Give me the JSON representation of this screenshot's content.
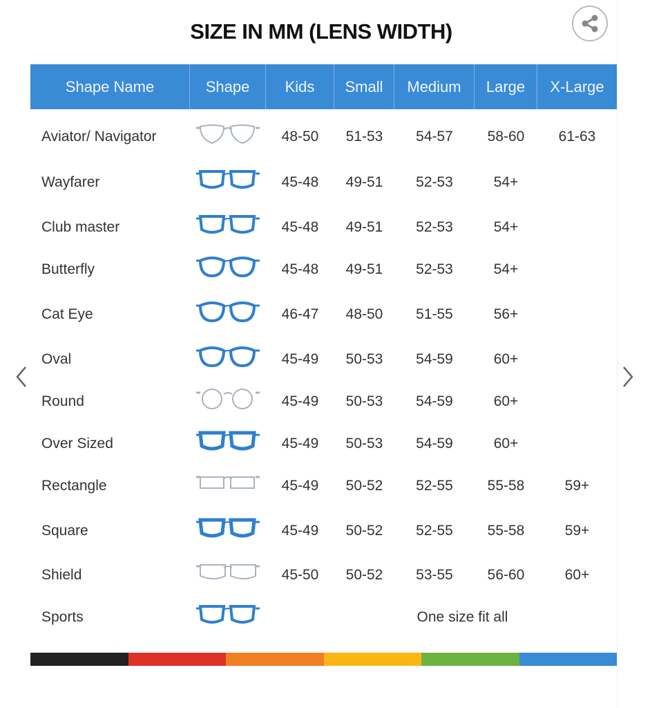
{
  "title": "SIZE IN MM (LENS WIDTH)",
  "share_icon": "share-icon",
  "columns": [
    "Shape Name",
    "Shape",
    "Kids",
    "Small",
    "Medium",
    "Large",
    "X-Large"
  ],
  "rows": [
    {
      "name": "Aviator/ Navigator",
      "shape": "aviator",
      "sizes": [
        "48-50",
        "51-53",
        "54-57",
        "58-60",
        "61-63"
      ]
    },
    {
      "name": "Wayfarer",
      "shape": "wayfarer",
      "sizes": [
        "45-48",
        "49-51",
        "52-53",
        "54+",
        ""
      ]
    },
    {
      "name": "Club master",
      "shape": "clubmaster",
      "sizes": [
        "45-48",
        "49-51",
        "52-53",
        "54+",
        ""
      ]
    },
    {
      "name": "Butterfly",
      "shape": "butterfly",
      "sizes": [
        "45-48",
        "49-51",
        "52-53",
        "54+",
        ""
      ]
    },
    {
      "name": "Cat Eye",
      "shape": "cateye",
      "sizes": [
        "46-47",
        "48-50",
        "51-55",
        "56+",
        ""
      ]
    },
    {
      "name": "Oval",
      "shape": "oval",
      "sizes": [
        "45-49",
        "50-53",
        "54-59",
        "60+",
        ""
      ]
    },
    {
      "name": "Round",
      "shape": "round",
      "sizes": [
        "45-49",
        "50-53",
        "54-59",
        "60+",
        ""
      ]
    },
    {
      "name": "Over Sized",
      "shape": "oversized",
      "sizes": [
        "45-49",
        "50-53",
        "54-59",
        "60+",
        ""
      ]
    },
    {
      "name": "Rectangle",
      "shape": "rectangle",
      "sizes": [
        "45-49",
        "50-52",
        "52-55",
        "55-58",
        "59+"
      ]
    },
    {
      "name": "Square",
      "shape": "square",
      "sizes": [
        "45-49",
        "50-52",
        "52-55",
        "55-58",
        "59+"
      ]
    },
    {
      "name": "Shield",
      "shape": "shield",
      "sizes": [
        "45-50",
        "50-52",
        "53-55",
        "56-60",
        "60+"
      ]
    },
    {
      "name": "Sports",
      "shape": "sports",
      "all_sizes": "One size fit all"
    }
  ],
  "colors": {
    "header": "#3a8bd6",
    "frame_blue": "#2f7fcf",
    "frame_gray": "#a9b4bf",
    "bar": [
      "#222222",
      "#e03128",
      "#f07f22",
      "#fbb514",
      "#6db33f",
      "#3a8bd6"
    ]
  },
  "nav": {
    "prev_icon": "chevron-left-icon",
    "next_icon": "chevron-right-icon"
  }
}
